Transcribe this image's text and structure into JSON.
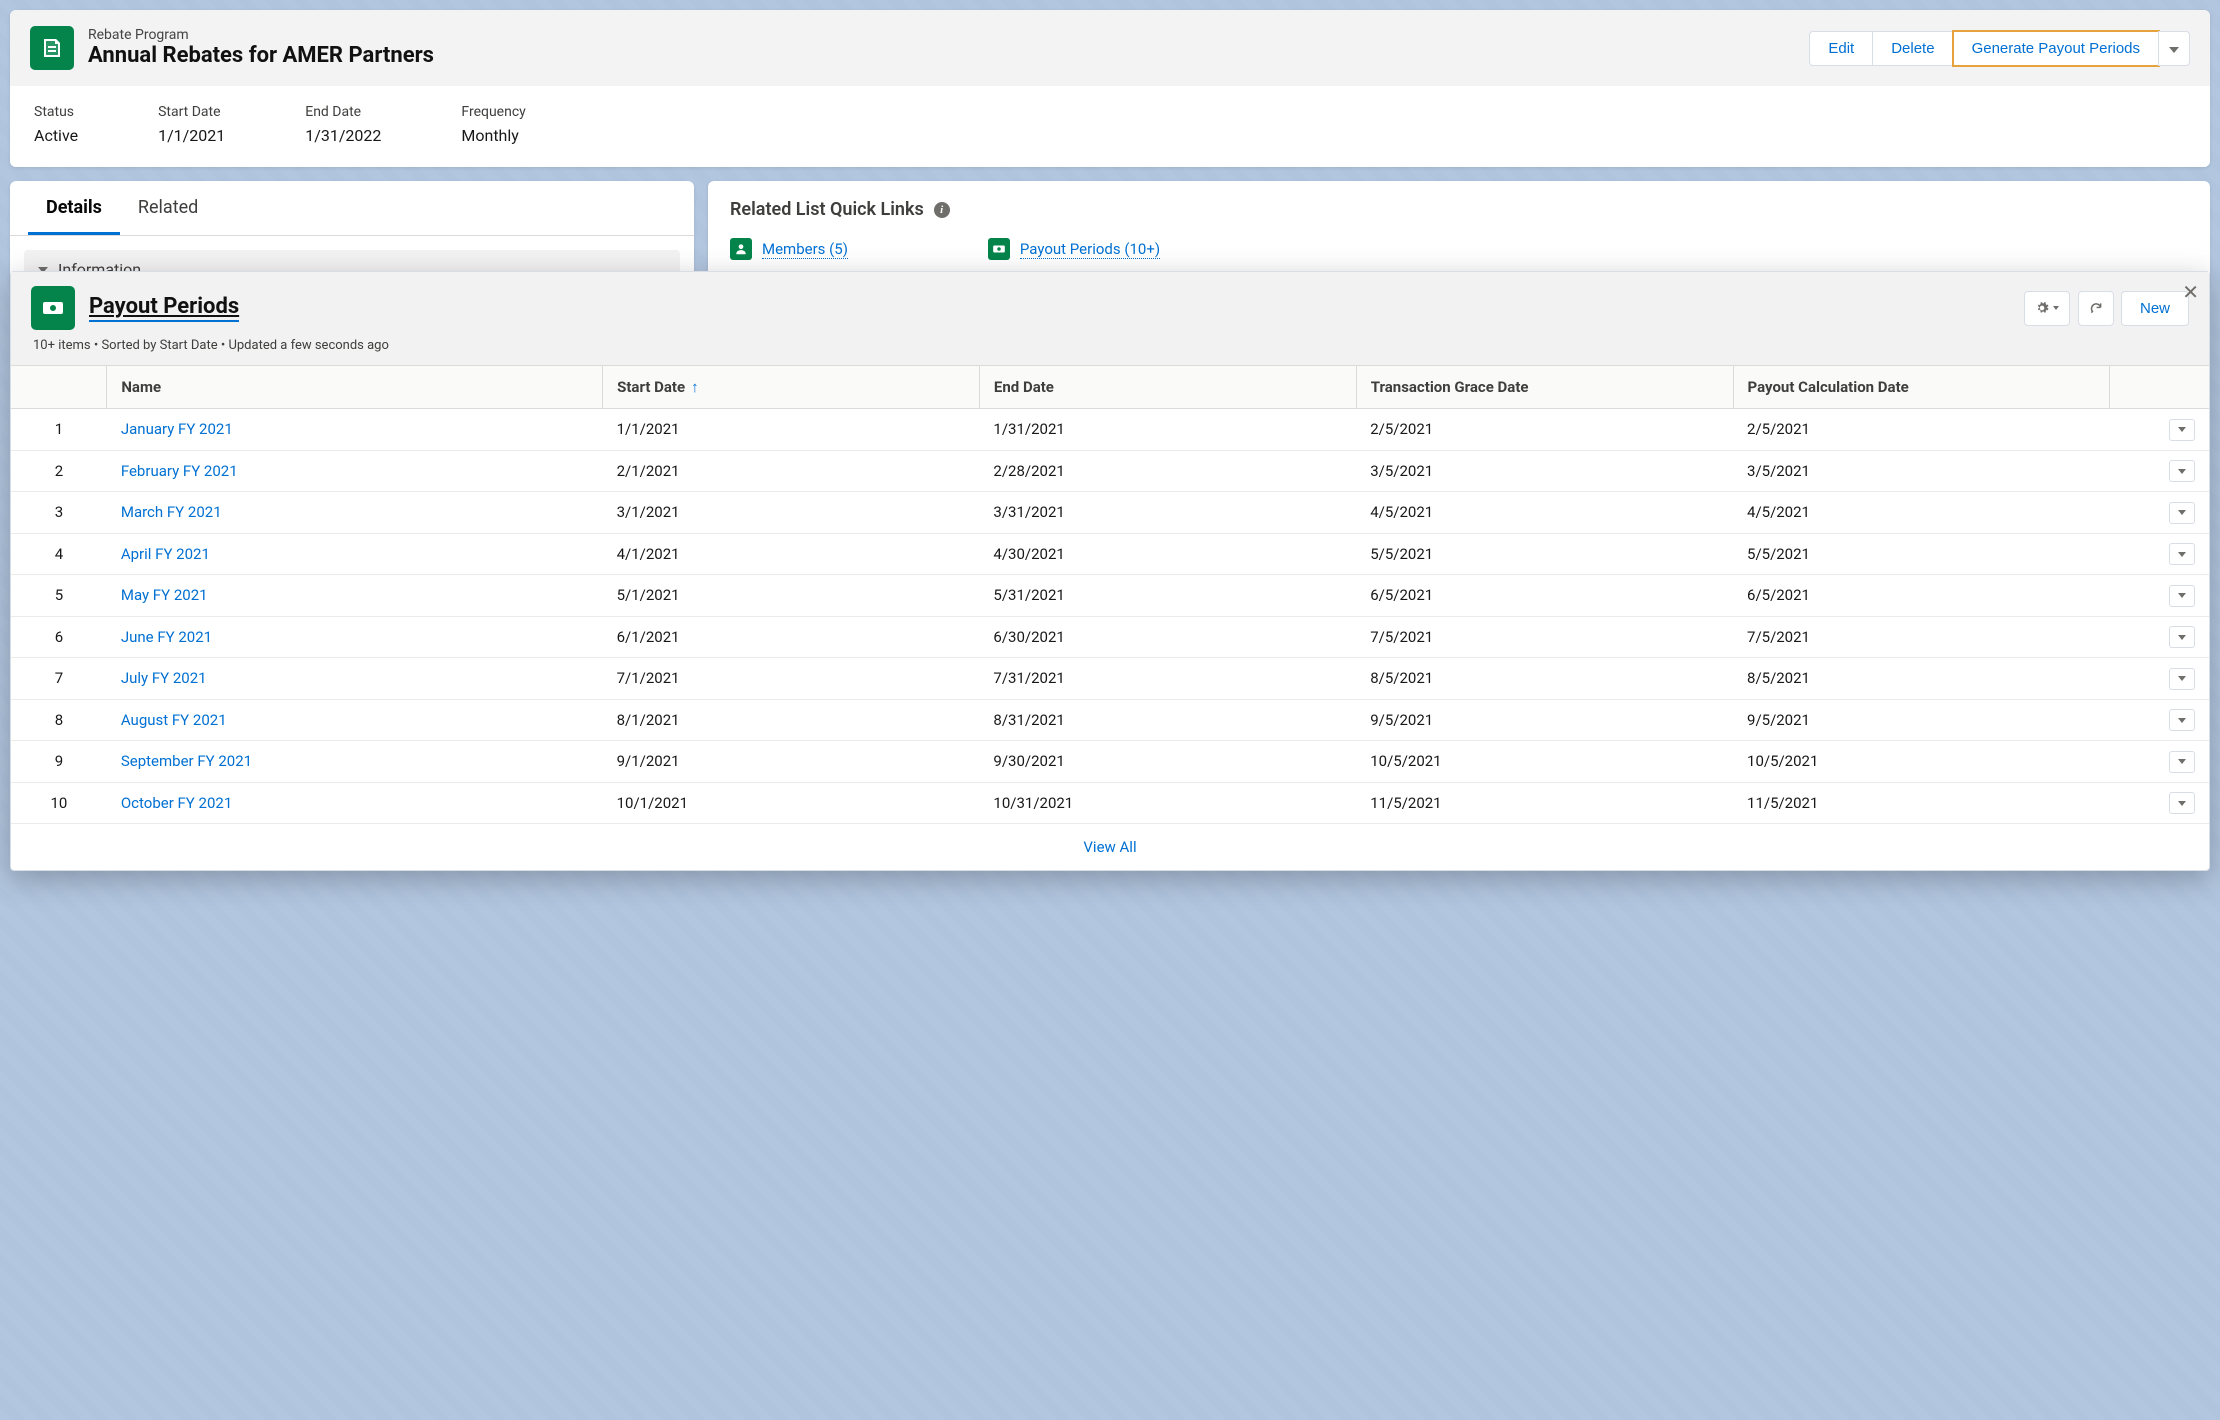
{
  "header": {
    "record_type": "Rebate Program",
    "title": "Annual Rebates for AMER Partners",
    "actions": {
      "edit": "Edit",
      "delete": "Delete",
      "generate": "Generate Payout Periods"
    }
  },
  "fields": [
    {
      "label": "Status",
      "value": "Active"
    },
    {
      "label": "Start Date",
      "value": "1/1/2021"
    },
    {
      "label": "End Date",
      "value": "1/31/2022"
    },
    {
      "label": "Frequency",
      "value": "Monthly"
    }
  ],
  "tabs": {
    "details": "Details",
    "related": "Related",
    "active": "details"
  },
  "section": {
    "information": "Information"
  },
  "quick_links": {
    "title": "Related List Quick Links",
    "members": "Members  (5)",
    "payout_periods": "Payout Periods  (10+)"
  },
  "panel": {
    "title": "Payout Periods",
    "meta": "10+ items • Sorted by Start Date • Updated a few seconds ago",
    "new_button": "New",
    "columns": [
      "Name",
      "Start Date",
      "End Date",
      "Transaction Grace Date",
      "Payout Calculation Date"
    ],
    "sort_column": "Start Date",
    "rows": [
      {
        "n": "1",
        "name": "January FY 2021",
        "start": "1/1/2021",
        "end": "1/31/2021",
        "grace": "2/5/2021",
        "calc": "2/5/2021"
      },
      {
        "n": "2",
        "name": "February FY 2021",
        "start": "2/1/2021",
        "end": "2/28/2021",
        "grace": "3/5/2021",
        "calc": "3/5/2021"
      },
      {
        "n": "3",
        "name": "March FY 2021",
        "start": "3/1/2021",
        "end": "3/31/2021",
        "grace": "4/5/2021",
        "calc": "4/5/2021"
      },
      {
        "n": "4",
        "name": "April FY 2021",
        "start": "4/1/2021",
        "end": "4/30/2021",
        "grace": "5/5/2021",
        "calc": "5/5/2021"
      },
      {
        "n": "5",
        "name": "May FY 2021",
        "start": "5/1/2021",
        "end": "5/31/2021",
        "grace": "6/5/2021",
        "calc": "6/5/2021"
      },
      {
        "n": "6",
        "name": "June FY 2021",
        "start": "6/1/2021",
        "end": "6/30/2021",
        "grace": "7/5/2021",
        "calc": "7/5/2021"
      },
      {
        "n": "7",
        "name": "July FY 2021",
        "start": "7/1/2021",
        "end": "7/31/2021",
        "grace": "8/5/2021",
        "calc": "8/5/2021"
      },
      {
        "n": "8",
        "name": "August FY 2021",
        "start": "8/1/2021",
        "end": "8/31/2021",
        "grace": "9/5/2021",
        "calc": "9/5/2021"
      },
      {
        "n": "9",
        "name": "September FY 2021",
        "start": "9/1/2021",
        "end": "9/30/2021",
        "grace": "10/5/2021",
        "calc": "10/5/2021"
      },
      {
        "n": "10",
        "name": "October FY 2021",
        "start": "10/1/2021",
        "end": "10/31/2021",
        "grace": "11/5/2021",
        "calc": "11/5/2021"
      }
    ],
    "view_all": "View All"
  },
  "colors": {
    "primary_link": "#0070d2",
    "green_icon": "#04844b",
    "highlight_border": "#e6a23c",
    "border": "#d8dde6",
    "bg_subtle": "#f3f2f2"
  }
}
